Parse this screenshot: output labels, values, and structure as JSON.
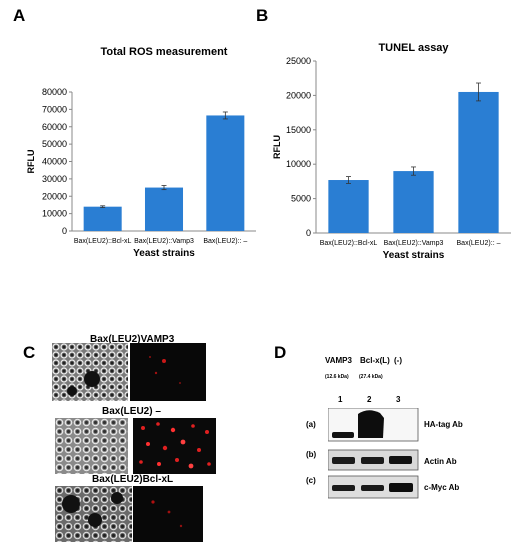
{
  "panels": {
    "a": "A",
    "b": "B",
    "c": "C",
    "d": "D"
  },
  "chart_data": [
    {
      "type": "bar",
      "title": "Total ROS measurement",
      "categories": [
        "Bax(LEU2)::Bcl-xL",
        "Bax(LEU2)::Vamp3",
        "Bax(LEU2):: –"
      ],
      "values": [
        14000,
        25000,
        66500
      ],
      "errors": [
        500,
        1200,
        2000
      ],
      "xlabel": "Yeast strains",
      "ylabel": "RFLU",
      "ylim": [
        0,
        80000
      ],
      "yticks": [
        0,
        10000,
        20000,
        30000,
        40000,
        50000,
        60000,
        70000,
        80000
      ],
      "grid": false,
      "color": "#2a7ed3"
    },
    {
      "type": "bar",
      "title": "TUNEL assay",
      "categories": [
        "Bax(LEU2)::Bcl-xL",
        "Bax(LEU2)::Vamp3",
        "Bax(LEU2):: –"
      ],
      "values": [
        7700,
        9000,
        20500
      ],
      "errors": [
        500,
        600,
        1300
      ],
      "xlabel": "Yeast strains",
      "ylabel": "RFLU",
      "ylim": [
        0,
        25000
      ],
      "yticks": [
        0,
        5000,
        10000,
        15000,
        20000,
        25000
      ],
      "grid": false,
      "color": "#2a7ed3"
    }
  ],
  "microscopy": {
    "labels": [
      "Bax(LEU2)VAMP3",
      "Bax(LEU2) –",
      "Bax(LEU2)Bcl-xL"
    ]
  },
  "blot": {
    "columns": [
      "VAMP3",
      "Bcl-x(L)",
      "(-)"
    ],
    "sizes": [
      "(12.6 kDa)",
      "(27.4 kDa)"
    ],
    "lanes": [
      "1",
      "2",
      "3"
    ],
    "rows": [
      {
        "tag": "(a)",
        "label": "HA-tag Ab"
      },
      {
        "tag": "(b)",
        "label": "Actin Ab"
      },
      {
        "tag": "(c)",
        "label": "c-Myc Ab"
      }
    ]
  }
}
